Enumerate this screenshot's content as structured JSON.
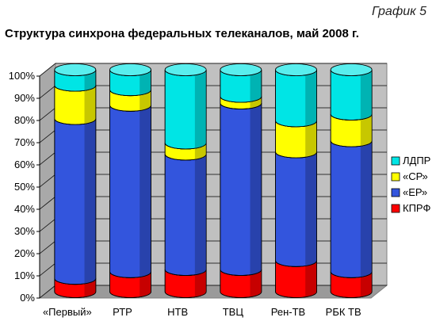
{
  "header": {
    "graph_number": "График 5"
  },
  "chart_data": {
    "type": "bar",
    "stacked": true,
    "percent": true,
    "title": "Структура синхрона федеральных телеканалов, май 2008 г.",
    "xlabel": "",
    "ylabel": "",
    "ylim": [
      0,
      100
    ],
    "yticks": [
      "0%",
      "10%",
      "20%",
      "30%",
      "40%",
      "50%",
      "60%",
      "70%",
      "80%",
      "90%",
      "100%"
    ],
    "grid": true,
    "legend_position": "right",
    "categories": [
      "«Первый»",
      "РТР",
      "НТВ",
      "ТВЦ",
      "Рен-ТВ",
      "РБК ТВ"
    ],
    "series": [
      {
        "name": "КПРФ",
        "color": "#ff0000",
        "values": [
          6,
          9,
          10,
          10,
          14,
          9
        ]
      },
      {
        "name": "«ЕР»",
        "color": "#3355dd",
        "values": [
          72,
          75,
          52,
          75,
          49,
          59
        ]
      },
      {
        "name": "«СР»",
        "color": "#ffff00",
        "values": [
          15,
          7,
          5,
          3,
          14,
          12
        ]
      },
      {
        "name": "ЛДПР",
        "color": "#00e5e5",
        "values": [
          7,
          9,
          33,
          12,
          23,
          20
        ]
      }
    ]
  }
}
